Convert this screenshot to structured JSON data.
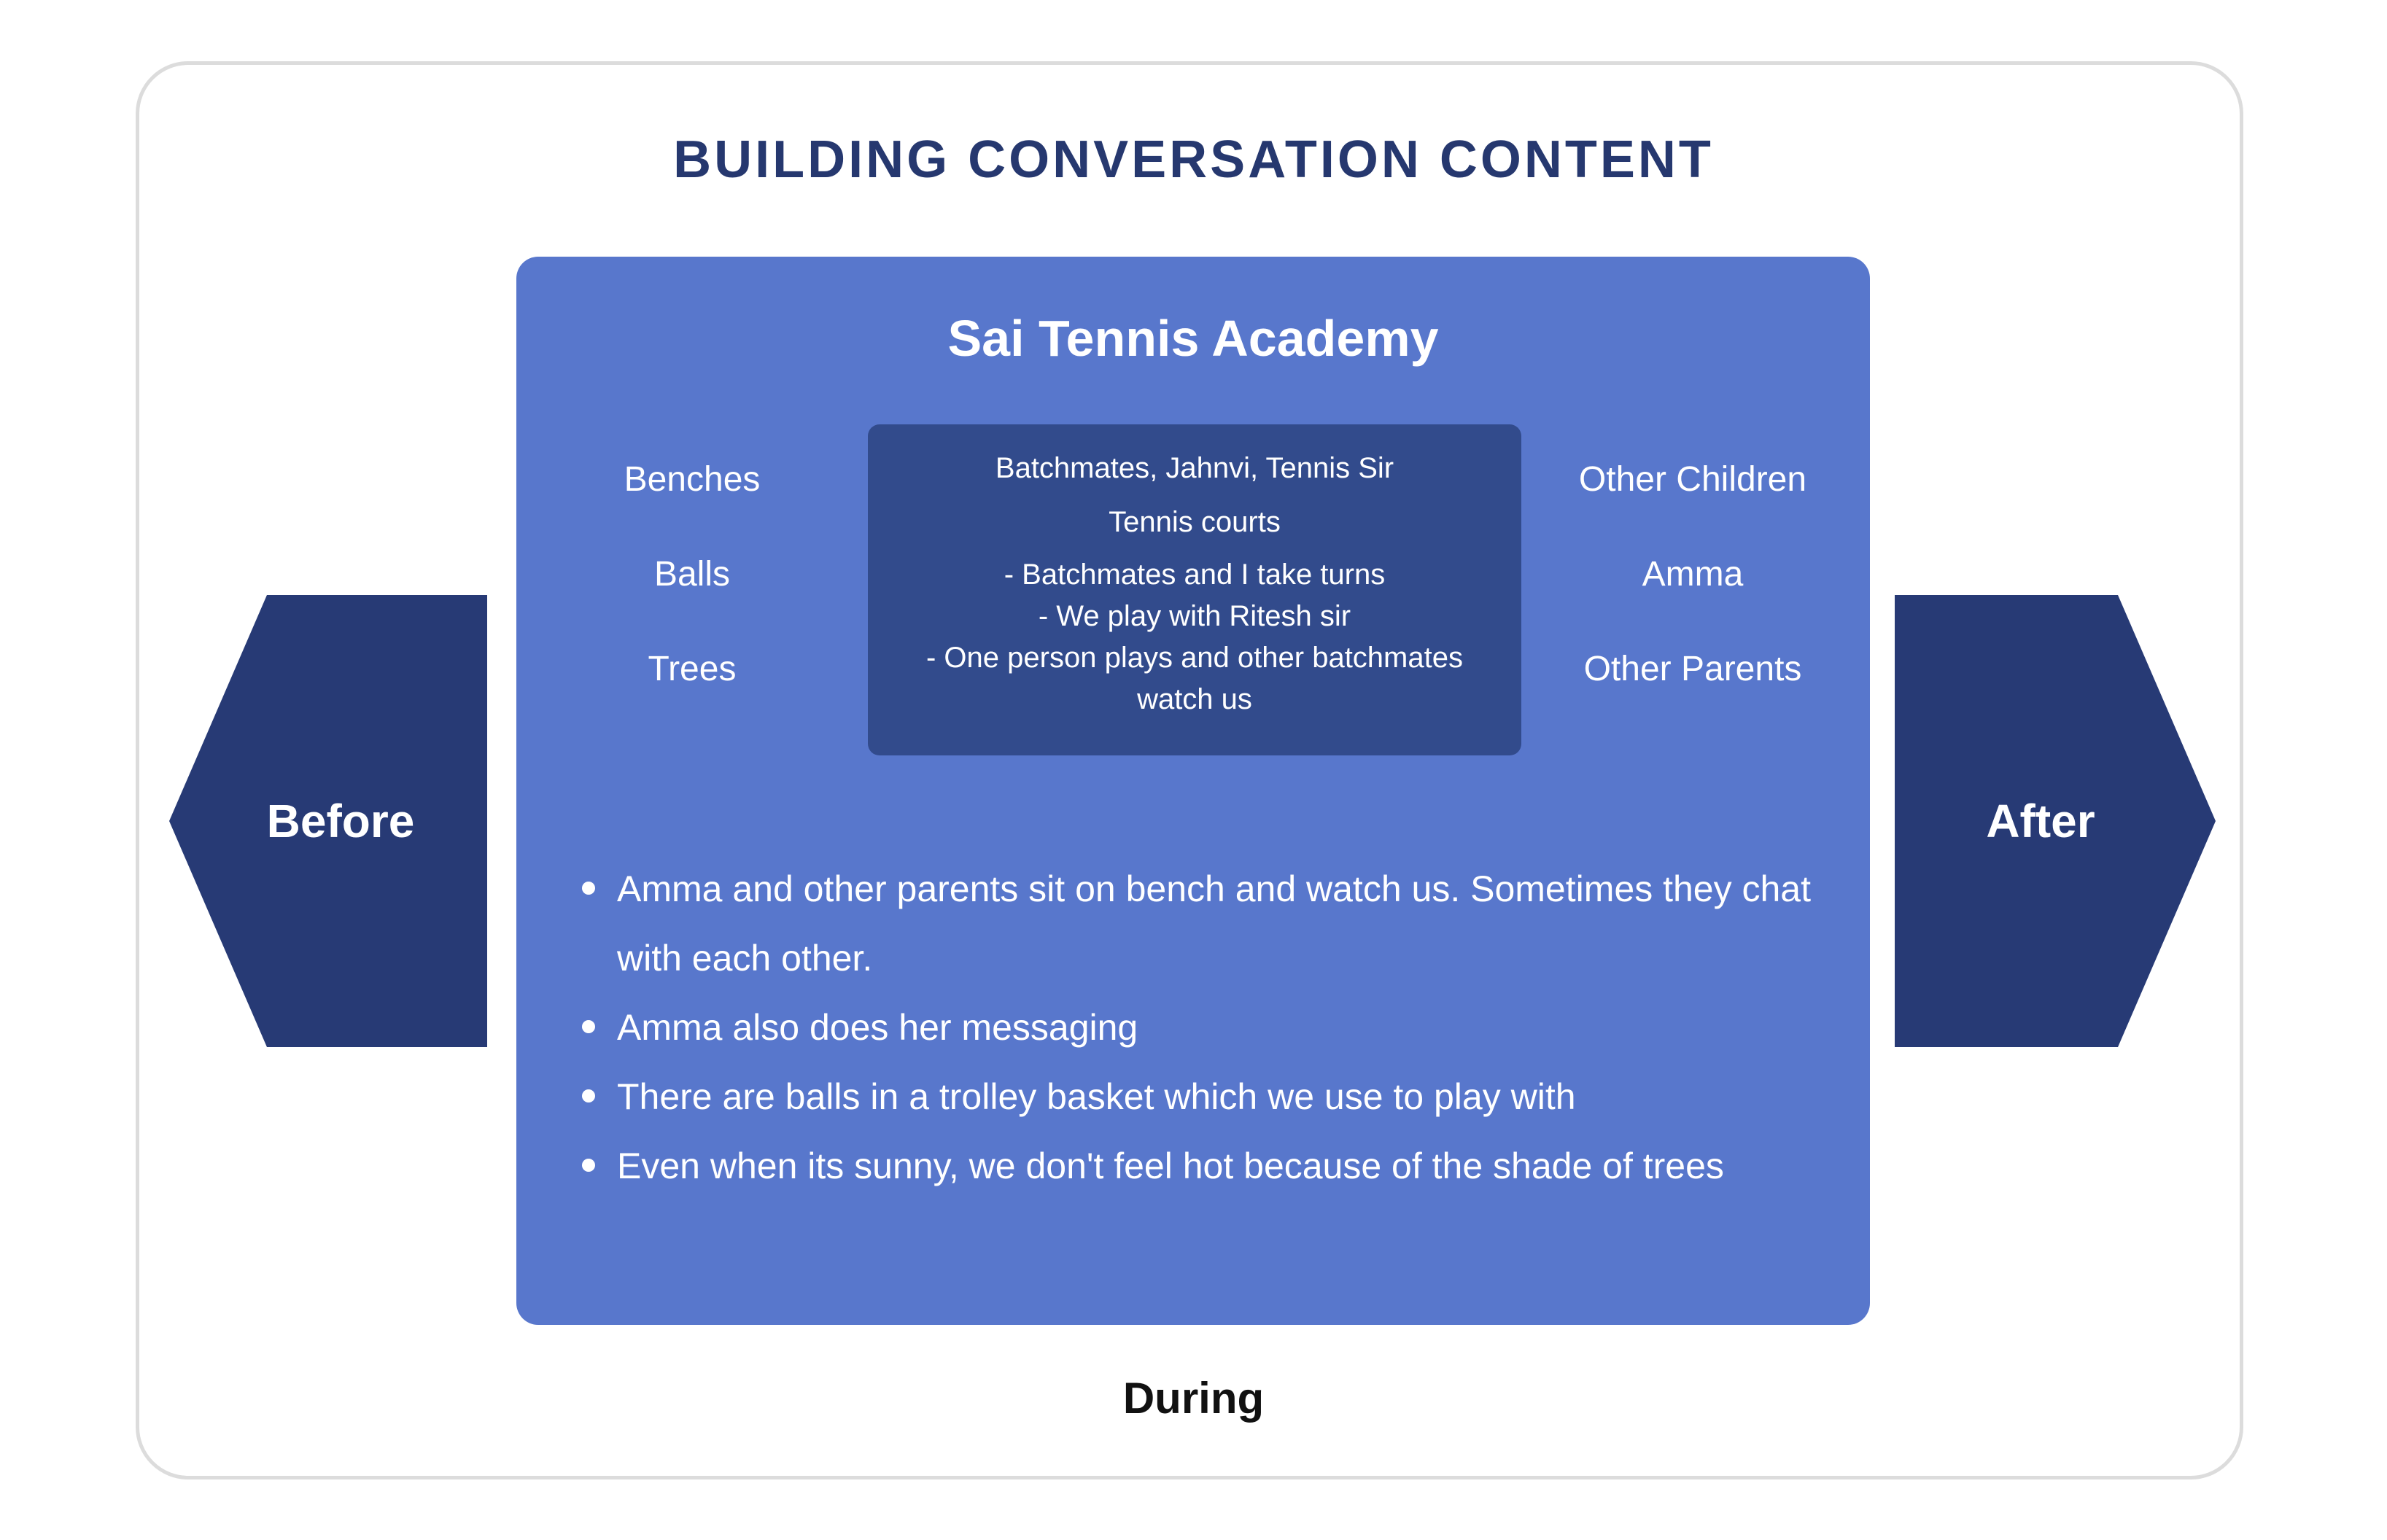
{
  "title": "BUILDING CONVERSATION CONTENT",
  "colors": {
    "title": "#26386f",
    "panel": "#5877cc",
    "center_box": "#324b8c",
    "arrow": "#273a75",
    "frame_border": "#dcdcdc"
  },
  "before": {
    "label": "Before"
  },
  "after": {
    "label": "After"
  },
  "during": {
    "label": "During",
    "panel_title": "Sai Tennis Academy",
    "left_items": [
      "Benches",
      "Balls",
      "Trees"
    ],
    "right_items": [
      "Other Children",
      "Amma",
      "Other Parents"
    ],
    "center": {
      "people": "Batchmates, Jahnvi, Tennis Sir",
      "place": "Tennis courts",
      "activities": [
        "- Batchmates and I take turns",
        "- We play with Ritesh sir",
        "- One person plays and other batchmates watch us"
      ]
    },
    "bullets": [
      "Amma and other parents sit on bench and watch us. Sometimes they chat with each other.",
      "Amma also does her messaging",
      "There are balls in a trolley basket which we use to play with",
      "Even when its sunny, we don't feel hot because of the shade of trees"
    ]
  }
}
